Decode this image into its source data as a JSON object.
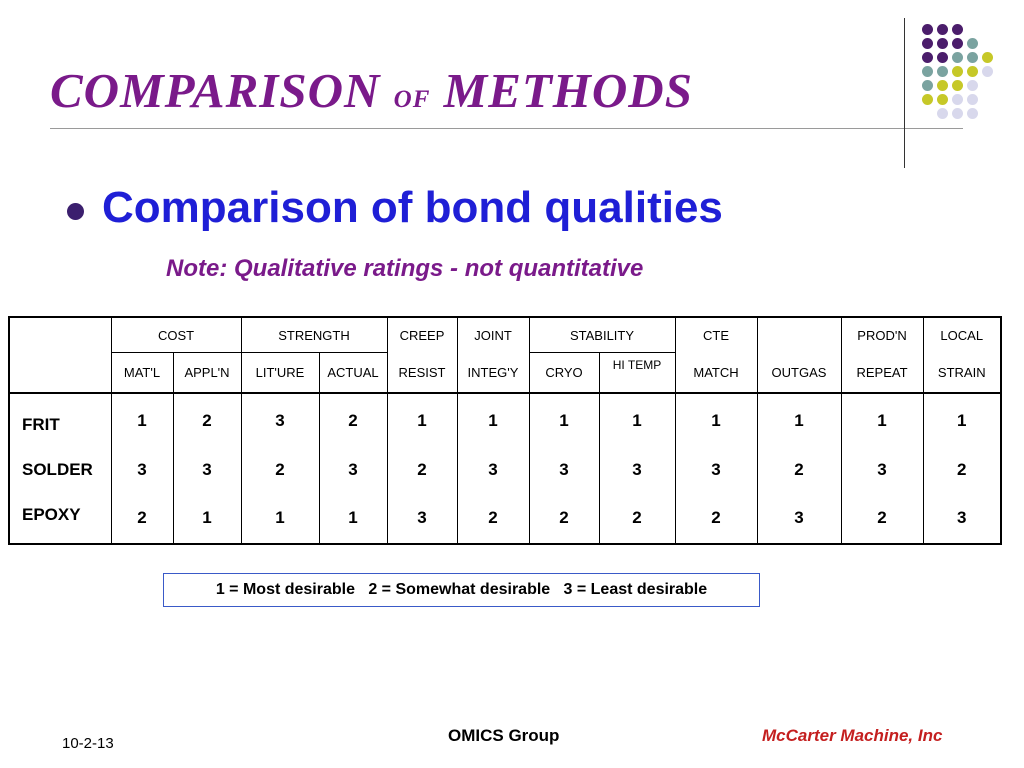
{
  "slide": {
    "title_part1": "COMPARISON ",
    "title_part2": "of",
    "title_part3": " METHODS",
    "bullet_heading": "Comparison of bond qualities",
    "note": "Note: Qualitative ratings - not quantitative",
    "colors": {
      "title": "#7a1a8a",
      "heading": "#1f1fd6",
      "note": "#7a1a8a",
      "footer_company": "#c41f1f"
    }
  },
  "decor": {
    "dot_colors": {
      "purple": "#4b1d6b",
      "teal": "#7aa3a0",
      "olive": "#c6c828",
      "lavender": "#d8d8ec"
    }
  },
  "table": {
    "group_headers": [
      "COST",
      "STRENGTH",
      "CREEP",
      "JOINT",
      "STABILITY",
      "CTE",
      "",
      "PROD'N",
      "LOCAL"
    ],
    "sub_headers": [
      "MAT'L",
      "APPL'N",
      "LIT'URE",
      "ACTUAL",
      "RESIST",
      "INTEG'Y",
      "CRYO",
      "HI TEMP",
      "MATCH",
      "OUTGAS",
      "REPEAT",
      "STRAIN"
    ],
    "rows": [
      {
        "label": "FRIT",
        "values": [
          "1",
          "2",
          "3",
          "2",
          "1",
          "1",
          "1",
          "1",
          "1",
          "1",
          "1",
          "1"
        ]
      },
      {
        "label": "SOLDER",
        "values": [
          "3",
          "3",
          "2",
          "3",
          "2",
          "3",
          "3",
          "3",
          "3",
          "2",
          "3",
          "2"
        ]
      },
      {
        "label": "EPOXY",
        "values": [
          "2",
          "1",
          "1",
          "1",
          "3",
          "2",
          "2",
          "2",
          "2",
          "3",
          "2",
          "3"
        ]
      }
    ]
  },
  "legend": "1 = Most desirable   2 = Somewhat desirable   3 = Least desirable",
  "footer": {
    "date": "10-2-13",
    "org": "OMICS Group",
    "company": "McCarter Machine, Inc"
  }
}
